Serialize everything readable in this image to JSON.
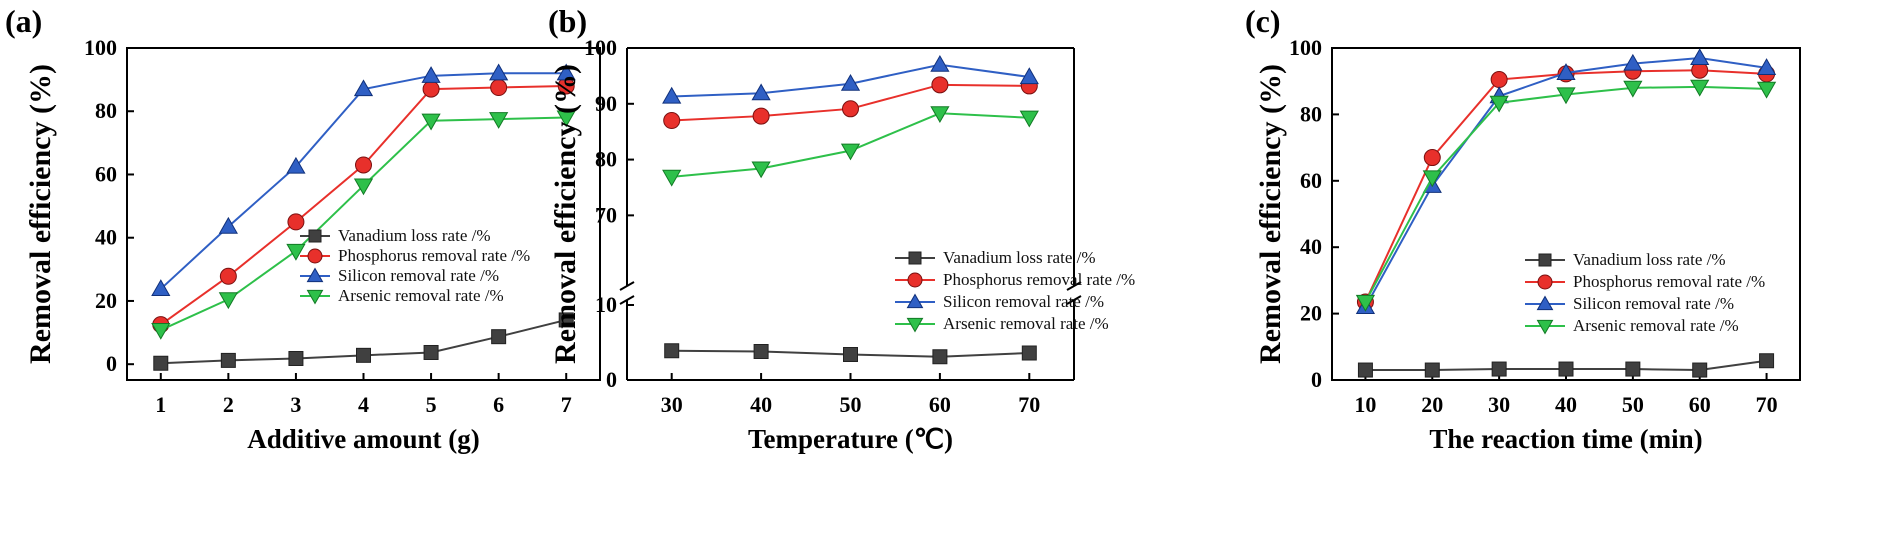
{
  "colors": {
    "vanadium": "#404040",
    "phosphorus": "#e8302b",
    "silicon": "#2f5fc4",
    "arsenic": "#2ec04a"
  },
  "chart_data": [
    {
      "type": "line",
      "panel": "(a)",
      "xlabel": "Additive amount (g)",
      "ylabel": "Removal efficiency (%)",
      "x": [
        1,
        2,
        3,
        4,
        5,
        6,
        7
      ],
      "xlim": [
        0.5,
        7.5
      ],
      "ylim": [
        -5,
        100
      ],
      "xticks": [
        "1",
        "2",
        "3",
        "4",
        "5",
        "6",
        "7"
      ],
      "yticks": [
        "0",
        "20",
        "40",
        "60",
        "80",
        "100"
      ],
      "legend_position": "center-right",
      "series": [
        {
          "name": "Vanadium loss rate /%",
          "marker": "square",
          "values": [
            0.3,
            1.2,
            1.8,
            2.8,
            3.7,
            8.7,
            14.0
          ]
        },
        {
          "name": "Phosphorus removal rate /%",
          "marker": "circle",
          "values": [
            12.5,
            27.8,
            45.0,
            63.0,
            87.0,
            87.5,
            88.0
          ]
        },
        {
          "name": "Silicon removal rate /%",
          "marker": "triangle-up",
          "values": [
            23.8,
            43.5,
            62.5,
            87.0,
            91.2,
            92.0,
            92.0
          ]
        },
        {
          "name": "Arsenic removal rate /%",
          "marker": "triangle-down",
          "values": [
            10.8,
            20.5,
            35.8,
            56.5,
            77.0,
            77.5,
            78.0
          ]
        }
      ]
    },
    {
      "type": "line",
      "panel": "(b)",
      "xlabel": "Temperature (℃)",
      "ylabel": "Removal efficiency (%)",
      "x": [
        30,
        40,
        50,
        60,
        70
      ],
      "xlim": [
        25,
        75
      ],
      "broken_axis": true,
      "ylim_lower": [
        0,
        12
      ],
      "ylim_upper": [
        62,
        100
      ],
      "xticks": [
        "30",
        "40",
        "50",
        "60",
        "70"
      ],
      "yticks_lower": [
        "0",
        "10"
      ],
      "yticks_upper": [
        "70",
        "80",
        "90",
        "100"
      ],
      "legend_position": "center-right",
      "series": [
        {
          "name": "Vanadium loss rate /%",
          "marker": "square",
          "values": [
            3.9,
            3.8,
            3.4,
            3.1,
            3.6
          ]
        },
        {
          "name": "Phosphorus removal rate /%",
          "marker": "circle",
          "values": [
            87.0,
            87.8,
            89.1,
            93.4,
            93.2
          ]
        },
        {
          "name": "Silicon removal rate /%",
          "marker": "triangle-up",
          "values": [
            91.3,
            91.9,
            93.6,
            97.0,
            94.8
          ]
        },
        {
          "name": "Arsenic removal rate /%",
          "marker": "triangle-down",
          "values": [
            76.9,
            78.4,
            81.6,
            88.3,
            87.5
          ]
        }
      ]
    },
    {
      "type": "line",
      "panel": "(c)",
      "xlabel": "The reaction time (min)",
      "ylabel": "Removal efficiency (%)",
      "x": [
        10,
        20,
        30,
        40,
        50,
        60,
        70
      ],
      "xlim": [
        5,
        75
      ],
      "ylim": [
        0,
        100
      ],
      "xticks": [
        "10",
        "20",
        "30",
        "40",
        "50",
        "60",
        "70"
      ],
      "yticks": [
        "0",
        "20",
        "40",
        "60",
        "80",
        "100"
      ],
      "legend_position": "center-right",
      "series": [
        {
          "name": "Vanadium loss rate /%",
          "marker": "square",
          "values": [
            3.0,
            3.0,
            3.3,
            3.3,
            3.3,
            3.0,
            5.8
          ]
        },
        {
          "name": "Phosphorus removal rate /%",
          "marker": "circle",
          "values": [
            23.5,
            67.0,
            90.5,
            92.2,
            93.0,
            93.3,
            92.2
          ]
        },
        {
          "name": "Silicon removal rate /%",
          "marker": "triangle-up",
          "values": [
            22.0,
            58.5,
            85.5,
            92.5,
            95.3,
            97.0,
            94.0
          ]
        },
        {
          "name": "Arsenic removal rate /%",
          "marker": "triangle-down",
          "values": [
            23.5,
            61.0,
            83.5,
            86.0,
            88.0,
            88.3,
            87.7
          ]
        }
      ]
    }
  ]
}
